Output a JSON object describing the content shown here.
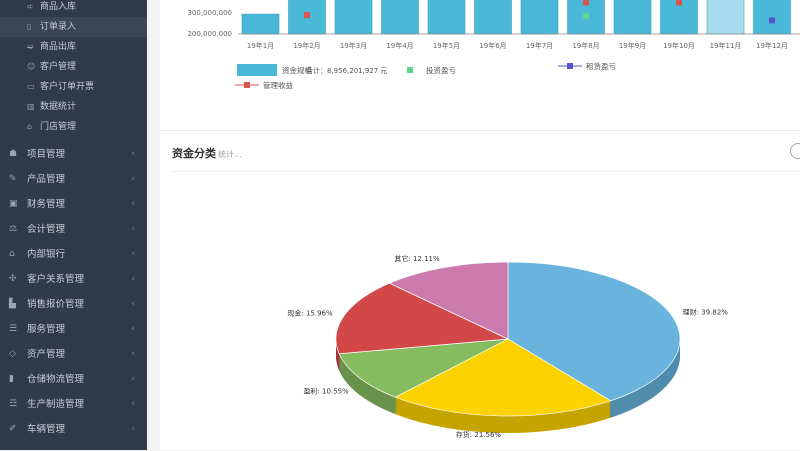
{
  "sidebar": {
    "sub_items": [
      {
        "label": "商品入库",
        "icon": "arrow-in-icon"
      },
      {
        "label": "订单录入",
        "icon": "bookmark-icon",
        "active": true
      },
      {
        "label": "商品出库",
        "icon": "arrow-out-icon"
      },
      {
        "label": "客户管理",
        "icon": "user-icon"
      },
      {
        "label": "客户订单开票",
        "icon": "card-icon"
      },
      {
        "label": "数据统计",
        "icon": "bar-chart-icon"
      },
      {
        "label": "门店管理",
        "icon": "store-icon"
      }
    ],
    "items": [
      {
        "label": "项目管理",
        "icon": "cubes-icon"
      },
      {
        "label": "产品管理",
        "icon": "edit-icon"
      },
      {
        "label": "财务管理",
        "icon": "money-icon"
      },
      {
        "label": "会计管理",
        "icon": "balance-icon"
      },
      {
        "label": "内部银行",
        "icon": "bank-icon"
      },
      {
        "label": "客户关系管理",
        "icon": "handshake-icon"
      },
      {
        "label": "销售报价管理",
        "icon": "chart-icon"
      },
      {
        "label": "服务管理",
        "icon": "list-icon"
      },
      {
        "label": "资产管理",
        "icon": "diamond-icon"
      },
      {
        "label": "仓储物流管理",
        "icon": "barcode-icon"
      },
      {
        "label": "生产制造管理",
        "icon": "factory-icon"
      },
      {
        "label": "车辆管理",
        "icon": "pencil-icon"
      }
    ]
  },
  "chart_data": [
    {
      "type": "bar",
      "categories": [
        "19年1月",
        "19年2月",
        "19年3月",
        "19年4月",
        "19年5月",
        "19年6月",
        "19年7月",
        "19年8月",
        "19年9月",
        "19年10月",
        "19年11月",
        "19年12月"
      ],
      "y_ticks": [
        "300,000,000",
        "200,000,000"
      ],
      "series": [
        {
          "name": "资金规模",
          "values": [
            290000000,
            400000000,
            400000000,
            400000000,
            400000000,
            400000000,
            400000000,
            400000000,
            400000000,
            400000000,
            400000000,
            400000000
          ],
          "color": "#4ab8d8"
        }
      ],
      "markers": [
        {
          "name": "投资盈亏",
          "color": "#5fd38a",
          "points": [
            {
              "month": "19年8月",
              "value": 280000000
            }
          ]
        },
        {
          "name": "租赁盈亏",
          "color": "#5555c8",
          "points": [
            {
              "month": "19年12月",
              "value": 260000000
            }
          ]
        },
        {
          "name": "管理收益",
          "color": "#d9534f",
          "points": [
            {
              "month": "19年2月",
              "value": 285000000
            },
            {
              "month": "19年8月",
              "value": 345000000
            },
            {
              "month": "19年10月",
              "value": 345000000
            }
          ]
        }
      ],
      "total_label": "合计：8,956,201,927 元"
    },
    {
      "type": "pie",
      "title": "资金分类",
      "subtitle": "统计...",
      "slices": [
        {
          "name": "理财",
          "value": 39.82,
          "label": "理财: 39.82%",
          "color": "#68b4dc"
        },
        {
          "name": "存货",
          "value": 21.56,
          "label": "存货: 21.56%",
          "color": "#fcd200"
        },
        {
          "name": "盈利",
          "value": 10.55,
          "label": "盈利: 10.55%",
          "color": "#86bc60"
        },
        {
          "name": "现金",
          "value": 15.96,
          "label": "现金: 15.96%",
          "color": "#d24848"
        },
        {
          "name": "其它",
          "value": 12.11,
          "label": "其它: 12.11%",
          "color": "#cc7aae"
        }
      ]
    }
  ]
}
